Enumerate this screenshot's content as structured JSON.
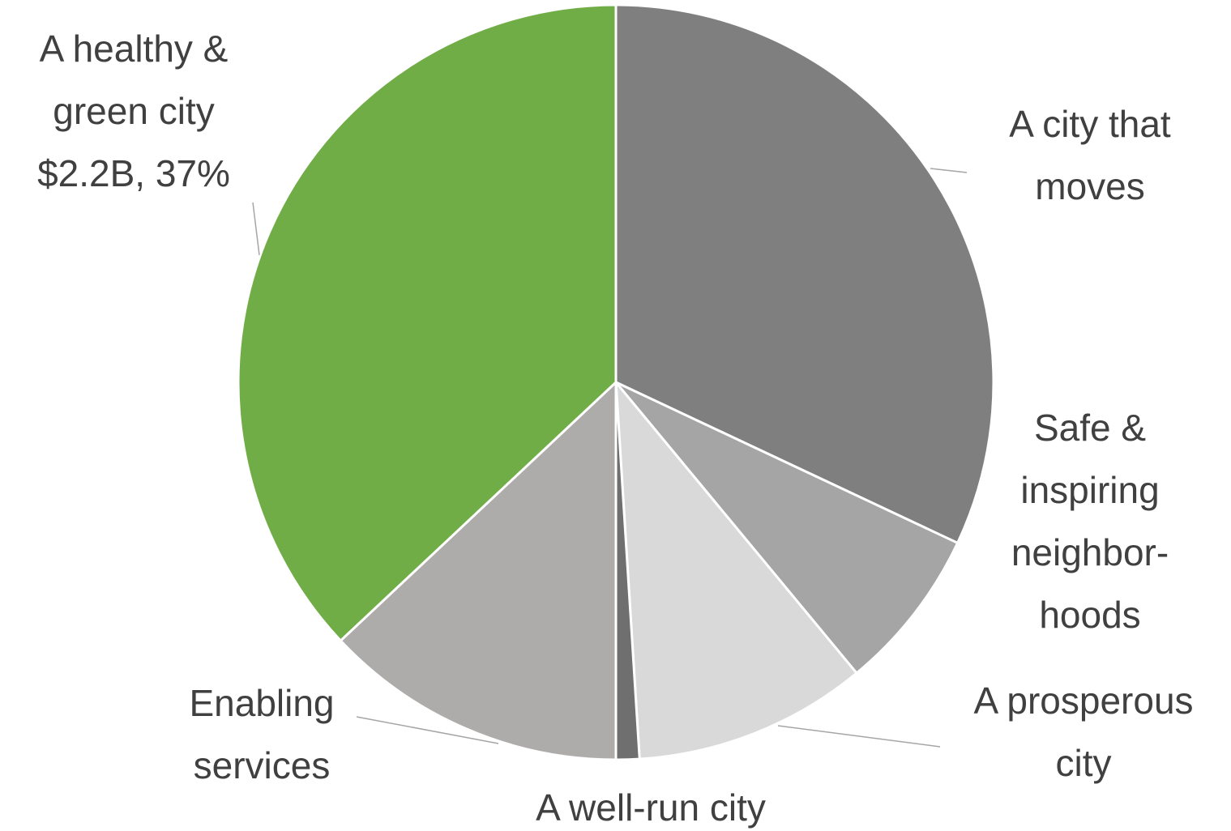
{
  "chart_data": {
    "type": "pie",
    "categories": [
      "A city that moves",
      "Safe & inspiring neighbor­hoods",
      "A prosperous city",
      "A well-run city",
      "Enabling services",
      "A healthy & green city"
    ],
    "values": [
      32,
      7,
      10,
      1,
      13,
      37
    ],
    "value_labels": [
      null,
      null,
      null,
      null,
      null,
      "$2.2B, 37%"
    ],
    "colors": [
      "#7f7f7f",
      "#a5a5a5",
      "#d9d9d9",
      "#6f6f6f",
      "#aeabab",
      "#70ad47"
    ]
  }
}
